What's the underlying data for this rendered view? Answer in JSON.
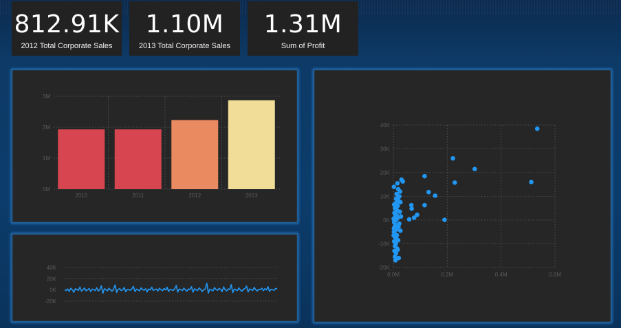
{
  "kpis": [
    {
      "value": "812.91K",
      "label": "2012 Total Corporate Sales"
    },
    {
      "value": "1.10M",
      "label": "2013 Total Corporate Sales"
    },
    {
      "value": "1.31M",
      "label": "Sum of Profit"
    }
  ],
  "colors": {
    "bar_2010": "#d64550",
    "bar_2011": "#d64550",
    "bar_2012": "#ea8a60",
    "bar_2013": "#f1dd98",
    "line": "#2196f3",
    "scatter": "#2196f3"
  },
  "chart_data": [
    {
      "type": "bar",
      "categories": [
        "2010",
        "2011",
        "2012",
        "2013"
      ],
      "values": [
        1.93,
        1.93,
        2.23,
        2.87
      ],
      "value_unit": "M",
      "yticks": [
        "0M",
        "1M",
        "2M",
        "3M"
      ],
      "ylim": [
        0,
        3
      ],
      "grid": true,
      "colors": [
        "#d64550",
        "#d64550",
        "#ea8a60",
        "#f1dd98"
      ]
    },
    {
      "type": "line",
      "yticks": [
        "-20K",
        "0K",
        "20K",
        "40K"
      ],
      "ylim": [
        -20,
        40
      ],
      "value_unit": "K",
      "grid": true,
      "values": [
        0.5,
        -1.2,
        1.8,
        -2.5,
        3.0,
        0.2,
        -4.1,
        2.2,
        1.0,
        -0.8,
        5.2,
        -2.2,
        0.8,
        3.5,
        -1.5,
        0.0,
        2.8,
        -3.0,
        1.5,
        0.4,
        -1.0,
        4.0,
        -2.0,
        0.6,
        7.5,
        -6.0,
        2.0,
        1.2,
        -1.8,
        3.2,
        0.0,
        -2.4,
        1.6,
        9.0,
        -4.5,
        0.8,
        2.5,
        -1.2,
        0.3,
        4.4,
        -3.2,
        1.0,
        0.5,
        -0.6,
        2.0,
        6.5,
        -2.8,
        1.4,
        0.2,
        -1.6,
        3.8,
        0.6,
        -0.4,
        2.2,
        -3.5,
        1.8,
        0.0,
        5.0,
        -1.0,
        0.8,
        1.6,
        -2.0,
        3.0,
        0.4,
        -1.4,
        2.6,
        0.2,
        4.8,
        -2.6,
        1.2,
        0.0,
        -0.8,
        2.4,
        8.0,
        -3.8,
        1.6,
        0.6,
        -1.2,
        3.4,
        0.2,
        -2.2,
        1.8,
        0.8,
        6.0,
        -4.0,
        2.0,
        0.4,
        -1.0,
        3.6,
        1.0,
        -2.8,
        0.6,
        2.2,
        12.0,
        -5.5,
        1.4,
        0.0,
        -1.6,
        4.2,
        0.8,
        -0.6,
        2.8,
        1.2,
        -3.0,
        5.5,
        0.4,
        -1.8,
        2.0,
        0.6,
        9.5,
        -4.8,
        1.6,
        0.2,
        -1.2,
        3.8,
        0.0,
        -2.4,
        1.4,
        2.6,
        7.0,
        -3.6,
        1.8,
        0.6,
        -1.0,
        4.6,
        0.4,
        -2.0,
        1.2,
        0.8,
        3.2,
        -1.4,
        2.4,
        0.2,
        5.8,
        -2.6,
        1.0,
        0.4,
        -0.8,
        2.8,
        1.6
      ]
    },
    {
      "type": "scatter",
      "xticks": [
        "0.0M",
        "0.2M",
        "0.4M",
        "0.6M"
      ],
      "yticks": [
        "-20K",
        "-10K",
        "0K",
        "10K",
        "20K",
        "30K",
        "40K"
      ],
      "xlim": [
        0,
        0.6
      ],
      "ylim": [
        -20,
        40
      ],
      "x_unit": "M",
      "y_unit": "K",
      "grid": true,
      "points": [
        [
          0.534,
          38.5
        ],
        [
          0.221,
          26.0
        ],
        [
          0.302,
          21.5
        ],
        [
          0.512,
          16.0
        ],
        [
          0.228,
          15.8
        ],
        [
          0.116,
          18.5
        ],
        [
          0.131,
          11.8
        ],
        [
          0.155,
          10.3
        ],
        [
          0.067,
          6.3
        ],
        [
          0.116,
          6.3
        ],
        [
          0.068,
          4.8
        ],
        [
          0.088,
          2.2
        ],
        [
          0.059,
          0.3
        ],
        [
          0.077,
          1.0
        ],
        [
          0.19,
          0.1
        ],
        [
          0.03,
          17.0
        ],
        [
          0.035,
          16.3
        ],
        [
          0.015,
          15.5
        ],
        [
          0.018,
          13.0
        ],
        [
          0.025,
          12.0
        ],
        [
          0.012,
          11.0
        ],
        [
          0.022,
          10.0
        ],
        [
          0.01,
          9.0
        ],
        [
          0.02,
          8.0
        ],
        [
          0.008,
          7.0
        ],
        [
          0.016,
          6.0
        ],
        [
          0.006,
          5.0
        ],
        [
          0.014,
          4.0
        ],
        [
          0.004,
          3.0
        ],
        [
          0.012,
          2.0
        ],
        [
          0.005,
          1.0
        ],
        [
          0.01,
          0.0
        ],
        [
          0.003,
          -1.0
        ],
        [
          0.008,
          -2.0
        ],
        [
          0.004,
          -3.0
        ],
        [
          0.011,
          -4.0
        ],
        [
          0.002,
          -5.0
        ],
        [
          0.007,
          -6.0
        ],
        [
          0.005,
          -7.0
        ],
        [
          0.012,
          -8.0
        ],
        [
          0.003,
          -9.0
        ],
        [
          0.009,
          -10.0
        ],
        [
          0.006,
          -11.0
        ],
        [
          0.014,
          -12.0
        ],
        [
          0.004,
          -13.0
        ],
        [
          0.01,
          -14.0
        ],
        [
          0.006,
          -15.5
        ],
        [
          0.02,
          -16.0
        ],
        [
          0.008,
          -17.0
        ],
        [
          0.002,
          14.0
        ],
        [
          0.018,
          9.5
        ],
        [
          0.026,
          7.5
        ],
        [
          0.024,
          3.5
        ],
        [
          0.028,
          1.5
        ],
        [
          0.022,
          -1.5
        ],
        [
          0.026,
          -4.5
        ],
        [
          0.018,
          -8.5
        ],
        [
          0.016,
          -12.5
        ],
        [
          0.003,
          6.5
        ],
        [
          0.001,
          0.5
        ],
        [
          0.001,
          -6.5
        ],
        [
          0.015,
          0.8
        ],
        [
          0.019,
          -2.8
        ],
        [
          0.013,
          8.6
        ],
        [
          0.009,
          -9.6
        ],
        [
          0.004,
          -0.4
        ],
        [
          0.007,
          2.4
        ],
        [
          0.011,
          5.4
        ],
        [
          0.002,
          -3.6
        ],
        [
          0.013,
          -6.4
        ]
      ]
    }
  ]
}
